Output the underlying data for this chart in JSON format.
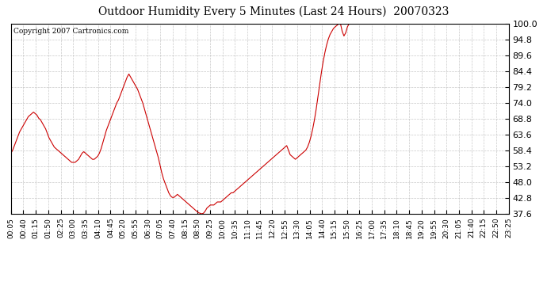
{
  "title": "Outdoor Humidity Every 5 Minutes (Last 24 Hours)  20070323",
  "copyright": "Copyright 2007 Cartronics.com",
  "line_color": "#cc0000",
  "background_color": "#ffffff",
  "grid_color": "#bbbbbb",
  "ylim": [
    37.6,
    100.0
  ],
  "yticks": [
    37.6,
    42.8,
    48.0,
    53.2,
    58.4,
    63.6,
    68.8,
    74.0,
    79.2,
    84.4,
    89.6,
    94.8,
    100.0
  ],
  "xtick_labels": [
    "00:05",
    "00:40",
    "01:15",
    "01:50",
    "02:25",
    "03:00",
    "03:35",
    "04:10",
    "04:45",
    "05:20",
    "05:55",
    "06:30",
    "07:05",
    "07:40",
    "08:15",
    "08:50",
    "09:25",
    "10:00",
    "10:35",
    "11:10",
    "11:45",
    "12:20",
    "12:55",
    "13:30",
    "14:05",
    "14:40",
    "15:15",
    "15:50",
    "16:25",
    "17:00",
    "17:35",
    "18:10",
    "18:45",
    "19:20",
    "19:55",
    "20:30",
    "21:05",
    "21:40",
    "22:15",
    "22:50",
    "23:25"
  ],
  "humidity_values": [
    57.5,
    58.5,
    60.0,
    61.5,
    63.0,
    64.5,
    65.5,
    66.5,
    67.5,
    68.5,
    69.5,
    70.0,
    70.5,
    71.0,
    70.5,
    70.0,
    69.0,
    68.5,
    67.5,
    66.5,
    65.5,
    64.0,
    62.5,
    61.5,
    60.5,
    59.5,
    59.0,
    58.5,
    58.0,
    57.5,
    57.0,
    56.5,
    56.0,
    55.5,
    55.0,
    54.5,
    54.5,
    54.5,
    55.0,
    55.5,
    56.5,
    57.5,
    58.0,
    57.5,
    57.0,
    56.5,
    56.0,
    55.5,
    55.5,
    56.0,
    56.5,
    57.5,
    59.0,
    61.0,
    63.0,
    65.0,
    66.5,
    68.0,
    69.5,
    71.0,
    72.5,
    74.0,
    75.0,
    76.5,
    78.0,
    79.5,
    81.0,
    82.5,
    83.5,
    82.5,
    81.5,
    80.5,
    79.5,
    78.5,
    77.0,
    75.5,
    74.0,
    72.0,
    70.0,
    68.0,
    66.0,
    64.0,
    62.0,
    60.0,
    58.0,
    56.0,
    53.5,
    51.0,
    49.0,
    47.5,
    46.0,
    44.5,
    43.5,
    43.0,
    43.0,
    43.5,
    44.0,
    43.5,
    43.0,
    42.5,
    42.0,
    41.5,
    41.0,
    40.5,
    40.0,
    39.5,
    39.0,
    38.5,
    38.0,
    37.8,
    37.6,
    37.8,
    38.5,
    39.5,
    40.0,
    40.5,
    40.5,
    40.5,
    41.0,
    41.5,
    41.5,
    41.5,
    42.0,
    42.5,
    43.0,
    43.5,
    44.0,
    44.5,
    44.5,
    45.0,
    45.5,
    46.0,
    46.5,
    47.0,
    47.5,
    48.0,
    48.5,
    49.0,
    49.5,
    50.0,
    50.5,
    51.0,
    51.5,
    52.0,
    52.5,
    53.0,
    53.5,
    54.0,
    54.5,
    55.0,
    55.5,
    56.0,
    56.5,
    57.0,
    57.5,
    58.0,
    58.5,
    59.0,
    59.5,
    60.0,
    58.5,
    57.0,
    56.5,
    56.0,
    55.5,
    56.0,
    56.5,
    57.0,
    57.5,
    58.0,
    58.5,
    59.5,
    61.0,
    63.0,
    65.5,
    68.5,
    72.0,
    76.0,
    80.0,
    84.0,
    87.5,
    90.5,
    93.0,
    95.0,
    96.5,
    97.5,
    98.5,
    99.0,
    99.5,
    100.0,
    100.0,
    97.5,
    96.0,
    97.0,
    99.0,
    100.0,
    100.0,
    100.0,
    100.0,
    100.0,
    100.0,
    100.0,
    100.0,
    100.0,
    100.0,
    100.0,
    100.0,
    100.0,
    100.0,
    100.0,
    100.0,
    100.0,
    100.0,
    100.0,
    100.0,
    100.0,
    100.0,
    100.0,
    100.0,
    100.0,
    100.0,
    100.0,
    100.0,
    100.0,
    100.0,
    100.0,
    100.0,
    100.0,
    100.0,
    100.0,
    100.0,
    100.0,
    100.0,
    100.0,
    100.0,
    100.0,
    100.0,
    100.0,
    100.0,
    100.0,
    100.0,
    100.0,
    100.0,
    100.0,
    100.0,
    100.0,
    100.0,
    100.0,
    100.0,
    100.0,
    100.0,
    100.0,
    100.0,
    100.0,
    100.0,
    100.0,
    100.0,
    100.0,
    100.0,
    100.0,
    100.0,
    100.0,
    100.0,
    100.0,
    100.0,
    100.0,
    100.0,
    100.0,
    100.0,
    100.0,
    100.0,
    100.0,
    100.0,
    100.0,
    100.0,
    100.0,
    100.0,
    100.0,
    100.0,
    100.0,
    100.0,
    100.0,
    100.0,
    100.0,
    100.0,
    100.0,
    100.0,
    100.0
  ]
}
